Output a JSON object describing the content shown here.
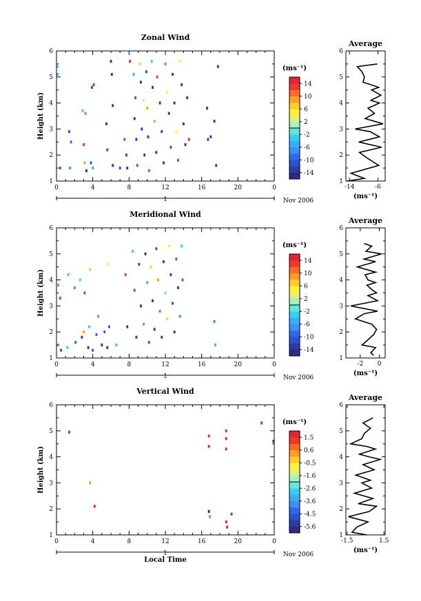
{
  "chart_data": [
    {
      "type": "heatmap",
      "title": "Zonal Wind",
      "ylabel": "Height (km)",
      "xlabel": "",
      "x_ticks": [
        "0",
        "4",
        "8",
        "12",
        "16",
        "20",
        "0"
      ],
      "xlim": [
        0,
        24
      ],
      "y_ticks": [
        "1",
        "2",
        "3",
        "4",
        "5",
        "6"
      ],
      "ylim": [
        1,
        6
      ],
      "date_label": "1",
      "date_suffix": "Nov 2006",
      "colorbar": {
        "unit": "(ms⁻¹)",
        "ticks": [
          "14",
          "10",
          "6",
          "2",
          "-2",
          "-6",
          "-10",
          "-14"
        ],
        "range": [
          -16,
          16
        ],
        "colors": [
          "#2c2b86",
          "#2c3aa8",
          "#2b52cb",
          "#2f69e8",
          "#3b8ff5",
          "#39aef5",
          "#37cfef",
          "#64e6e0",
          "#a6f0c2",
          "#e1f272",
          "#fff13c",
          "#ffcc2a",
          "#ff9e22",
          "#fb6a28",
          "#ee3a2c",
          "#e02630"
        ]
      },
      "cells": [
        [
          0.1,
          5.1,
          -5
        ],
        [
          0.1,
          5.4,
          -4
        ],
        [
          0.4,
          1.5,
          -12
        ],
        [
          1.4,
          2.9,
          -12
        ],
        [
          1.5,
          1.5,
          -8
        ],
        [
          1.6,
          2.5,
          -10
        ],
        [
          2.9,
          3.7,
          -3
        ],
        [
          3.0,
          2.4,
          13
        ],
        [
          3.1,
          1.7,
          8
        ],
        [
          3.2,
          3.6,
          11
        ],
        [
          3.3,
          1.4,
          -13
        ],
        [
          3.8,
          1.7,
          -11
        ],
        [
          3.9,
          4.6,
          -11
        ],
        [
          4.0,
          1.5,
          -6
        ],
        [
          4.1,
          4.7,
          14
        ],
        [
          5.5,
          3.2,
          -14
        ],
        [
          5.6,
          2.2,
          -12
        ],
        [
          6.0,
          5.6,
          -14
        ],
        [
          6.1,
          5.1,
          -13
        ],
        [
          6.2,
          3.9,
          -14
        ],
        [
          6.2,
          1.6,
          -14
        ],
        [
          7.0,
          1.5,
          -12
        ],
        [
          7.5,
          2.6,
          13
        ],
        [
          7.7,
          2.0,
          -13
        ],
        [
          7.8,
          1.5,
          -14
        ],
        [
          8.1,
          5.6,
          14
        ],
        [
          8.5,
          5.1,
          -6
        ],
        [
          8.6,
          3.4,
          -14
        ],
        [
          8.7,
          4.2,
          -10
        ],
        [
          8.8,
          2.6,
          -13
        ],
        [
          8.9,
          1.6,
          -10
        ],
        [
          9.2,
          5.5,
          6
        ],
        [
          9.3,
          4.8,
          -13
        ],
        [
          9.4,
          3.0,
          -14
        ],
        [
          9.6,
          4.1,
          2
        ],
        [
          9.7,
          2.0,
          -14
        ],
        [
          9.9,
          5.2,
          -12
        ],
        [
          10.0,
          3.8,
          9
        ],
        [
          10.1,
          2.7,
          -14
        ],
        [
          10.2,
          1.4,
          12
        ],
        [
          10.5,
          5.6,
          -3
        ],
        [
          10.6,
          4.6,
          -14
        ],
        [
          10.8,
          3.3,
          8
        ],
        [
          11.0,
          2.1,
          -14
        ],
        [
          11.1,
          5.0,
          12
        ],
        [
          11.4,
          4.0,
          -14
        ],
        [
          11.6,
          2.9,
          -14
        ],
        [
          11.8,
          1.7,
          -14
        ],
        [
          12.0,
          5.5,
          10
        ],
        [
          12.2,
          4.4,
          4
        ],
        [
          12.4,
          3.6,
          -14
        ],
        [
          12.6,
          2.3,
          -12
        ],
        [
          12.8,
          5.1,
          -14
        ],
        [
          13.0,
          4.0,
          -14
        ],
        [
          13.2,
          2.9,
          5
        ],
        [
          13.4,
          1.8,
          -10
        ],
        [
          13.6,
          5.6,
          4
        ],
        [
          13.8,
          4.7,
          -14
        ],
        [
          14.0,
          3.2,
          -14
        ],
        [
          14.2,
          2.4,
          -14
        ],
        [
          14.4,
          4.2,
          -14
        ],
        [
          14.6,
          2.6,
          14
        ],
        [
          16.6,
          3.8,
          -14
        ],
        [
          16.7,
          2.6,
          -14
        ],
        [
          17.0,
          2.7,
          -14
        ],
        [
          17.4,
          3.3,
          -14
        ],
        [
          17.6,
          1.6,
          -14
        ],
        [
          17.8,
          5.4,
          -13
        ]
      ],
      "profile": {
        "title": "Average",
        "xlabel": "(ms⁻¹)",
        "x_ticks": [
          "-14",
          "-6"
        ],
        "xlim": [
          -15,
          -4
        ],
        "y_ticks": [
          "1",
          "2",
          "3",
          "4",
          "5",
          "6"
        ],
        "ylim": [
          1,
          6
        ],
        "points": [
          [
            -6.2,
            5.5
          ],
          [
            -11.8,
            5.4
          ],
          [
            -10.5,
            5.2
          ],
          [
            -9.8,
            5.0
          ],
          [
            -10.2,
            4.8
          ],
          [
            -5.8,
            4.6
          ],
          [
            -7.8,
            4.5
          ],
          [
            -5.2,
            4.3
          ],
          [
            -8.0,
            4.1
          ],
          [
            -5.6,
            4.0
          ],
          [
            -8.8,
            3.8
          ],
          [
            -7.0,
            3.6
          ],
          [
            -9.6,
            3.4
          ],
          [
            -4.6,
            3.2
          ],
          [
            -12.4,
            3.0
          ],
          [
            -8.2,
            2.9
          ],
          [
            -5.6,
            2.7
          ],
          [
            -11.4,
            2.5
          ],
          [
            -5.0,
            2.3
          ],
          [
            -11.2,
            2.1
          ],
          [
            -9.2,
            1.9
          ],
          [
            -5.8,
            1.6
          ],
          [
            -13.6,
            1.3
          ],
          [
            -9.8,
            1.1
          ],
          [
            -14.6,
            1.0
          ]
        ]
      }
    },
    {
      "type": "heatmap",
      "title": "Meridional Wind",
      "ylabel": "Height (km)",
      "xlabel": "",
      "x_ticks": [
        "0",
        "4",
        "8",
        "12",
        "16",
        "20",
        "0"
      ],
      "xlim": [
        0,
        24
      ],
      "y_ticks": [
        "1",
        "2",
        "3",
        "4",
        "5",
        "6"
      ],
      "ylim": [
        1,
        6
      ],
      "date_label": "1",
      "date_suffix": "Nov 2006",
      "colorbar": {
        "unit": "(ms⁻¹)",
        "ticks": [
          "14",
          "10",
          "6",
          "2",
          "-2",
          "-6",
          "-10",
          "-14"
        ],
        "range": [
          -16,
          16
        ],
        "colors": [
          "#2c2b86",
          "#2c3aa8",
          "#2b52cb",
          "#2f69e8",
          "#3b8ff5",
          "#39aef5",
          "#37cfef",
          "#64e6e0",
          "#a6f0c2",
          "#e1f272",
          "#fff13c",
          "#ffcc2a",
          "#ff9e22",
          "#fb6a28",
          "#ee3a2c",
          "#e02630"
        ]
      },
      "cells": [
        [
          0.2,
          3.8,
          -6
        ],
        [
          0.2,
          1.5,
          -3
        ],
        [
          0.4,
          3.3,
          -9
        ],
        [
          0.5,
          1.3,
          -12
        ],
        [
          1.2,
          1.4,
          -4
        ],
        [
          1.3,
          4.2,
          -3
        ],
        [
          2.0,
          3.7,
          -7
        ],
        [
          2.1,
          1.6,
          -10
        ],
        [
          2.6,
          4.0,
          -4
        ],
        [
          2.8,
          1.8,
          -13
        ],
        [
          3.0,
          2.0,
          8
        ],
        [
          3.1,
          3.5,
          -9
        ],
        [
          3.5,
          1.4,
          -14
        ],
        [
          3.6,
          2.2,
          -4
        ],
        [
          3.7,
          4.4,
          7
        ],
        [
          4.0,
          1.3,
          -12
        ],
        [
          4.4,
          1.9,
          -10
        ],
        [
          4.6,
          2.6,
          -6
        ],
        [
          5.0,
          1.5,
          -13
        ],
        [
          5.3,
          2.0,
          -10
        ],
        [
          5.6,
          1.4,
          -14
        ],
        [
          5.7,
          4.6,
          3
        ],
        [
          5.8,
          2.2,
          -12
        ],
        [
          6.6,
          1.5,
          -6
        ],
        [
          7.6,
          4.2,
          13
        ],
        [
          7.8,
          2.2,
          -14
        ],
        [
          8.4,
          5.1,
          -3
        ],
        [
          8.6,
          3.6,
          -10
        ],
        [
          8.8,
          1.8,
          -13
        ],
        [
          9.1,
          4.6,
          -12
        ],
        [
          9.3,
          3.0,
          -14
        ],
        [
          9.6,
          2.3,
          -6
        ],
        [
          9.8,
          5.0,
          -14
        ],
        [
          10.0,
          3.9,
          -5
        ],
        [
          10.2,
          1.6,
          -12
        ],
        [
          10.4,
          4.5,
          6
        ],
        [
          10.6,
          3.2,
          -14
        ],
        [
          10.8,
          2.1,
          -14
        ],
        [
          11.0,
          5.2,
          -12
        ],
        [
          11.2,
          4.0,
          8
        ],
        [
          11.4,
          2.8,
          -8
        ],
        [
          11.6,
          1.8,
          -14
        ],
        [
          11.8,
          4.7,
          -14
        ],
        [
          12.0,
          3.5,
          -2
        ],
        [
          12.2,
          2.5,
          6
        ],
        [
          12.4,
          5.3,
          5
        ],
        [
          12.6,
          4.2,
          -14
        ],
        [
          12.8,
          3.1,
          -12
        ],
        [
          13.0,
          2.0,
          -14
        ],
        [
          13.2,
          4.8,
          -10
        ],
        [
          13.4,
          3.7,
          -14
        ],
        [
          13.6,
          2.6,
          -7
        ],
        [
          13.8,
          5.3,
          -4
        ],
        [
          13.9,
          4.0,
          -10
        ],
        [
          17.4,
          2.4,
          -8
        ],
        [
          17.5,
          1.5,
          -6
        ]
      ],
      "profile": {
        "title": "Average",
        "xlabel": "(ms⁻¹)",
        "x_ticks": [
          "-2",
          "0"
        ],
        "xlim": [
          -3.5,
          0.6
        ],
        "y_ticks": [
          "1",
          "2",
          "3",
          "4",
          "5",
          "6"
        ],
        "ylim": [
          1,
          6
        ],
        "points": [
          [
            -1.6,
            5.4
          ],
          [
            -0.8,
            5.3
          ],
          [
            -1.4,
            5.1
          ],
          [
            0.2,
            5.0
          ],
          [
            -1.6,
            4.8
          ],
          [
            -0.4,
            4.7
          ],
          [
            -2.3,
            4.5
          ],
          [
            -0.4,
            4.3
          ],
          [
            -1.5,
            4.2
          ],
          [
            -1.2,
            4.0
          ],
          [
            -0.4,
            3.9
          ],
          [
            -1.3,
            3.8
          ],
          [
            -0.7,
            3.6
          ],
          [
            -0.3,
            3.5
          ],
          [
            -1.2,
            3.4
          ],
          [
            -0.2,
            3.2
          ],
          [
            -1.6,
            3.1
          ],
          [
            -3.0,
            3.0
          ],
          [
            -1.6,
            2.9
          ],
          [
            -0.2,
            2.8
          ],
          [
            -1.6,
            2.7
          ],
          [
            -2.5,
            2.5
          ],
          [
            -0.8,
            2.3
          ],
          [
            -0.3,
            2.1
          ],
          [
            -0.6,
            1.9
          ],
          [
            -1.2,
            1.7
          ],
          [
            -1.8,
            1.5
          ],
          [
            -0.4,
            1.4
          ],
          [
            -0.9,
            1.2
          ],
          [
            -0.6,
            1.1
          ]
        ]
      }
    },
    {
      "type": "heatmap",
      "title": "Vertical Wind",
      "ylabel": "Height (km)",
      "xlabel": "Local Time",
      "x_ticks": [
        "0",
        "4",
        "8",
        "12",
        "16",
        "20",
        "0"
      ],
      "xlim": [
        0,
        24
      ],
      "y_ticks": [
        "1",
        "2",
        "3",
        "4",
        "5",
        "6"
      ],
      "ylim": [
        1,
        6
      ],
      "date_label": "1",
      "date_suffix": "Nov 2006",
      "colorbar": {
        "unit": "(ms⁻¹)",
        "ticks": [
          "1.5",
          "0.6",
          "-0.5",
          "-1.6",
          "-2.6",
          "-3.6",
          "-4.5",
          "-5.6"
        ],
        "range": [
          -6,
          2
        ],
        "colors": [
          "#2c2b86",
          "#2c3aa8",
          "#2b52cb",
          "#2f69e8",
          "#3b8ff5",
          "#39aef5",
          "#37cfef",
          "#64e6e0",
          "#a6f0c2",
          "#e1f272",
          "#fff13c",
          "#ffcc2a",
          "#ff9e22",
          "#fb6a28",
          "#ee3a2c",
          "#e02630"
        ]
      },
      "cells": [
        [
          1.4,
          4.95,
          -5
        ],
        [
          3.7,
          3.0,
          0.4
        ],
        [
          4.2,
          2.1,
          1.5
        ],
        [
          16.8,
          4.8,
          1.5
        ],
        [
          16.8,
          4.4,
          1.5
        ],
        [
          16.8,
          1.9,
          -6
        ],
        [
          16.9,
          1.7,
          0.8
        ],
        [
          18.7,
          5.0,
          1.5
        ],
        [
          18.7,
          4.7,
          1.5
        ],
        [
          18.7,
          4.3,
          1.5
        ],
        [
          18.7,
          1.5,
          1.5
        ],
        [
          18.8,
          1.3,
          1.5
        ],
        [
          19.3,
          1.8,
          -5
        ],
        [
          22.6,
          5.3,
          1.5
        ],
        [
          23.9,
          4.6,
          -5
        ]
      ],
      "profile": {
        "title": "Average",
        "xlabel": "(ms⁻¹)",
        "x_ticks": [
          "-1.5",
          "1.5"
        ],
        "xlim": [
          -1.6,
          1.6
        ],
        "y_ticks": [
          "1",
          "2",
          "3",
          "4",
          "5",
          "6"
        ],
        "ylim": [
          1,
          6
        ],
        "points": [
          [
            0.6,
            5.5
          ],
          [
            -0.2,
            5.3
          ],
          [
            0.4,
            5.1
          ],
          [
            -0.1,
            4.9
          ],
          [
            -0.3,
            4.7
          ],
          [
            -1.2,
            4.5
          ],
          [
            0.1,
            4.4
          ],
          [
            0.8,
            4.3
          ],
          [
            -0.5,
            4.1
          ],
          [
            0.3,
            4.0
          ],
          [
            1.2,
            3.9
          ],
          [
            -0.2,
            3.7
          ],
          [
            0.7,
            3.5
          ],
          [
            -0.8,
            3.3
          ],
          [
            0.4,
            3.1
          ],
          [
            -0.3,
            3.0
          ],
          [
            0.5,
            2.8
          ],
          [
            -0.9,
            2.6
          ],
          [
            0.6,
            2.4
          ],
          [
            -0.6,
            2.2
          ],
          [
            0.9,
            2.1
          ],
          [
            0.3,
            1.9
          ],
          [
            -1.4,
            1.7
          ],
          [
            0.2,
            1.5
          ],
          [
            -0.7,
            1.3
          ],
          [
            -1.1,
            1.1
          ],
          [
            0.1,
            1.0
          ]
        ]
      }
    }
  ]
}
